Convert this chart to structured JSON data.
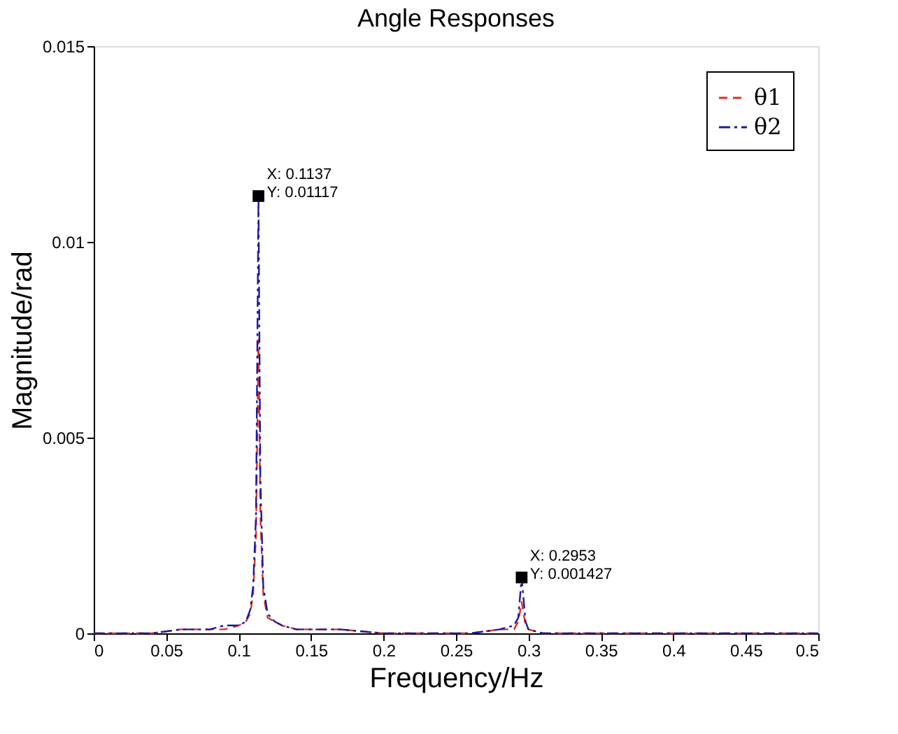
{
  "chart_data": {
    "type": "line",
    "title": "Angle Responses",
    "xlabel": "Frequency/Hz",
    "ylabel": "Magnitude/rad",
    "xlim": [
      0,
      0.5
    ],
    "ylim": [
      0,
      0.015
    ],
    "xticks": [
      0,
      0.05,
      0.1,
      0.15,
      0.2,
      0.25,
      0.3,
      0.35,
      0.4,
      0.45,
      0.5
    ],
    "yticks": [
      0,
      0.005,
      0.01,
      0.015
    ],
    "grid": false,
    "legend": "top right",
    "marker": "none",
    "series": [
      {
        "name": "θ1",
        "color": "#e03020",
        "line_style": "dashed",
        "x": [
          0,
          0.02,
          0.04,
          0.06,
          0.08,
          0.09,
          0.1,
          0.105,
          0.108,
          0.11,
          0.112,
          0.1137,
          0.115,
          0.117,
          0.12,
          0.125,
          0.13,
          0.14,
          0.15,
          0.17,
          0.2,
          0.23,
          0.26,
          0.28,
          0.29,
          0.293,
          0.2953,
          0.298,
          0.3,
          0.31,
          0.35,
          0.4,
          0.45,
          0.5
        ],
        "values": [
          0,
          0,
          0,
          0.0001,
          0.0001,
          0.0001,
          0.0002,
          0.0003,
          0.0005,
          0.001,
          0.0025,
          0.0075,
          0.003,
          0.001,
          0.0004,
          0.0003,
          0.0002,
          0.0001,
          0.0001,
          0.0001,
          0,
          0,
          0,
          0.0001,
          0.0001,
          0.0003,
          0.0008,
          0.0002,
          0.0001,
          0,
          0,
          0,
          0,
          0
        ]
      },
      {
        "name": "θ2",
        "color": "#1a1aa0",
        "line_style": "dashdot",
        "x": [
          0,
          0.02,
          0.04,
          0.06,
          0.08,
          0.09,
          0.1,
          0.105,
          0.108,
          0.11,
          0.112,
          0.1137,
          0.115,
          0.117,
          0.12,
          0.125,
          0.13,
          0.14,
          0.15,
          0.17,
          0.2,
          0.23,
          0.26,
          0.28,
          0.29,
          0.293,
          0.2953,
          0.298,
          0.3,
          0.31,
          0.35,
          0.4,
          0.45,
          0.5
        ],
        "values": [
          0,
          0,
          0,
          0.0001,
          0.0001,
          0.0002,
          0.0002,
          0.0003,
          0.0006,
          0.0012,
          0.003,
          0.01117,
          0.004,
          0.0012,
          0.0005,
          0.0003,
          0.0002,
          0.0001,
          0.0001,
          0.0001,
          0,
          0,
          0,
          0.0001,
          0.0002,
          0.0004,
          0.001427,
          0.0003,
          0.0001,
          0,
          0,
          0,
          0,
          0
        ]
      }
    ],
    "annotations": [
      {
        "text": "X: 0.1137\nY: 0.01117",
        "x": 0.1137,
        "y": 0.01117
      },
      {
        "text": "X: 0.2953\nY: 0.001427",
        "x": 0.2953,
        "y": 0.001427
      }
    ]
  }
}
